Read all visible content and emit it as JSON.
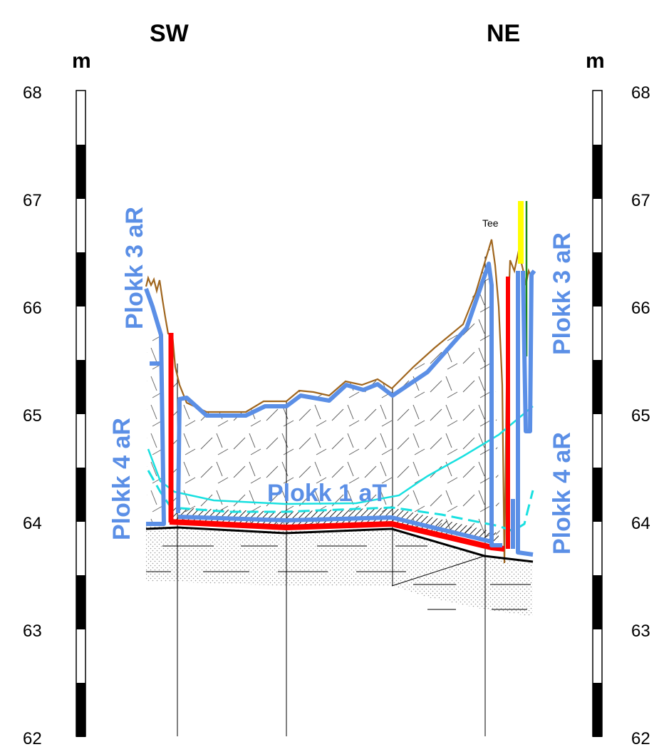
{
  "header": {
    "left_dir": "SW",
    "right_dir": "NE"
  },
  "axis": {
    "unit": "m",
    "ticks": [
      "68",
      "67",
      "66",
      "65",
      "64",
      "63",
      "62"
    ]
  },
  "labels": {
    "plokk3_left": "Plokk 3 aR",
    "plokk4_left": "Plokk 4 aR",
    "plokk1": "Plokk 1 aT",
    "plokk3_right": "Plokk 3 aR",
    "plokk4_right": "Plokk 4 aR",
    "tee": "Tee"
  },
  "colors": {
    "plokk_blue": "#5b8fe6",
    "ground_brown": "#a0661e",
    "cyan": "#19e0e0",
    "red": "#ff0000"
  }
}
